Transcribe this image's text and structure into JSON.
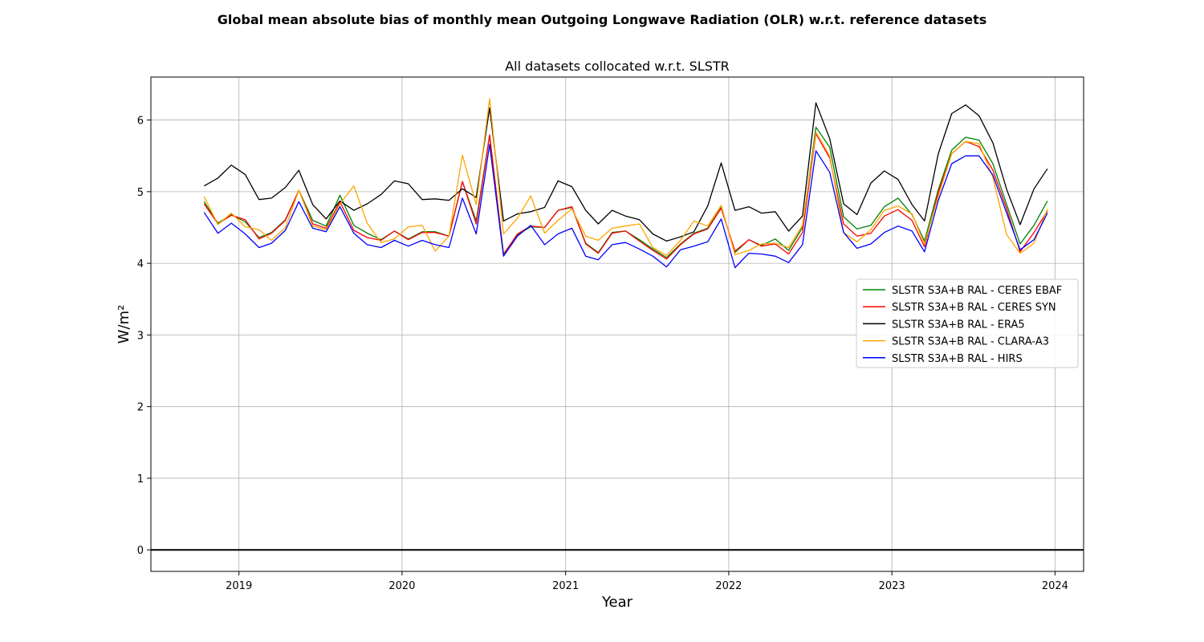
{
  "chart_data": {
    "type": "line",
    "suptitle": "Global mean absolute bias of monthly mean Outgoing Longwave Radiation (OLR) w.r.t. reference datasets",
    "title": "All datasets collocated w.r.t. SLSTR",
    "xlabel": "Year",
    "ylabel": "W/m²",
    "xlim": [
      "2018-06-18",
      "2024-03-05"
    ],
    "ylim": [
      -0.3,
      6.6
    ],
    "xticks": [
      {
        "date": "2019-01-01",
        "label": "2019"
      },
      {
        "date": "2020-01-01",
        "label": "2020"
      },
      {
        "date": "2021-01-01",
        "label": "2021"
      },
      {
        "date": "2022-01-01",
        "label": "2022"
      },
      {
        "date": "2023-01-01",
        "label": "2023"
      },
      {
        "date": "2024-01-01",
        "label": "2024"
      }
    ],
    "yticks": [
      0,
      1,
      2,
      3,
      4,
      5,
      6
    ],
    "grid": true,
    "legend_position": "center-right",
    "reference_line": {
      "y": 0,
      "color": "#000000"
    },
    "x": [
      "2018-10",
      "2018-11",
      "2018-12",
      "2019-01",
      "2019-02",
      "2019-03",
      "2019-04",
      "2019-05",
      "2019-06",
      "2019-07",
      "2019-08",
      "2019-09",
      "2019-10",
      "2019-11",
      "2019-12",
      "2020-01",
      "2020-02",
      "2020-03",
      "2020-04",
      "2020-05",
      "2020-06",
      "2020-07",
      "2020-08",
      "2020-09",
      "2020-10",
      "2020-11",
      "2020-12",
      "2021-01",
      "2021-02",
      "2021-03",
      "2021-04",
      "2021-05",
      "2021-06",
      "2021-07",
      "2021-08",
      "2021-09",
      "2021-10",
      "2021-11",
      "2021-12",
      "2022-01",
      "2022-02",
      "2022-03",
      "2022-04",
      "2022-05",
      "2022-06",
      "2022-07",
      "2022-08",
      "2022-09",
      "2022-10",
      "2022-11",
      "2022-12",
      "2023-01",
      "2023-02",
      "2023-03",
      "2023-04",
      "2023-05",
      "2023-06",
      "2023-07",
      "2023-08",
      "2023-09",
      "2023-10",
      "2023-11",
      "2023-12"
    ],
    "series": [
      {
        "name": "SLSTR S3A+B RAL - CERES EBAF",
        "color": "#008000",
        "values": [
          4.86,
          4.56,
          4.68,
          4.58,
          4.36,
          4.43,
          4.61,
          5.02,
          4.6,
          4.52,
          4.95,
          4.53,
          4.42,
          4.33,
          4.45,
          4.34,
          4.44,
          4.44,
          4.38,
          5.14,
          4.59,
          5.79,
          4.13,
          4.4,
          4.51,
          4.5,
          4.74,
          4.78,
          4.28,
          4.15,
          4.43,
          4.45,
          4.33,
          4.2,
          4.08,
          4.27,
          4.42,
          4.49,
          4.78,
          4.15,
          4.33,
          4.25,
          4.34,
          4.18,
          4.5,
          5.9,
          5.62,
          4.65,
          4.48,
          4.53,
          4.79,
          4.91,
          4.68,
          4.31,
          5.03,
          5.58,
          5.76,
          5.72,
          5.39,
          4.82,
          4.27,
          4.53,
          4.87
        ]
      },
      {
        "name": "SLSTR S3A+B RAL - CERES SYN",
        "color": "#ff0000",
        "values": [
          4.83,
          4.55,
          4.67,
          4.61,
          4.34,
          4.42,
          4.6,
          5.02,
          4.55,
          4.49,
          4.86,
          4.46,
          4.36,
          4.32,
          4.45,
          4.33,
          4.43,
          4.43,
          4.38,
          5.14,
          4.55,
          5.79,
          4.12,
          4.41,
          4.52,
          4.5,
          4.74,
          4.79,
          4.27,
          4.14,
          4.42,
          4.45,
          4.31,
          4.18,
          4.06,
          4.26,
          4.41,
          4.48,
          4.77,
          4.17,
          4.33,
          4.24,
          4.27,
          4.13,
          4.43,
          5.81,
          5.47,
          4.55,
          4.38,
          4.42,
          4.66,
          4.75,
          4.6,
          4.23,
          4.99,
          5.53,
          5.7,
          5.63,
          5.3,
          4.76,
          4.16,
          4.43,
          4.73
        ]
      },
      {
        "name": "SLSTR S3A+B RAL - ERA5",
        "color": "#000000",
        "values": [
          5.08,
          5.19,
          5.37,
          5.24,
          4.89,
          4.91,
          5.06,
          5.3,
          4.82,
          4.62,
          4.87,
          4.74,
          4.83,
          4.96,
          5.15,
          5.11,
          4.89,
          4.9,
          4.88,
          5.04,
          4.92,
          6.17,
          4.59,
          4.69,
          4.72,
          4.78,
          5.15,
          5.07,
          4.74,
          4.55,
          4.74,
          4.66,
          4.61,
          4.41,
          4.31,
          4.37,
          4.44,
          4.8,
          5.4,
          4.74,
          4.79,
          4.7,
          4.72,
          4.45,
          4.66,
          6.24,
          5.74,
          4.83,
          4.68,
          5.12,
          5.29,
          5.17,
          4.82,
          4.59,
          5.53,
          6.09,
          6.21,
          6.06,
          5.68,
          5.03,
          4.54,
          5.04,
          5.32
        ]
      },
      {
        "name": "SLSTR S3A+B RAL - CLARA-A3",
        "color": "#ffa500",
        "values": [
          4.93,
          4.54,
          4.7,
          4.51,
          4.47,
          4.32,
          4.5,
          5.02,
          4.52,
          4.47,
          4.83,
          5.08,
          4.56,
          4.29,
          4.34,
          4.51,
          4.53,
          4.17,
          4.38,
          5.51,
          4.82,
          6.3,
          4.41,
          4.63,
          4.94,
          4.42,
          4.6,
          4.76,
          4.38,
          4.32,
          4.49,
          4.52,
          4.55,
          4.22,
          4.11,
          4.32,
          4.59,
          4.52,
          4.81,
          4.12,
          4.18,
          4.27,
          4.28,
          4.22,
          4.53,
          5.83,
          5.5,
          4.43,
          4.3,
          4.47,
          4.74,
          4.8,
          4.69,
          4.27,
          4.94,
          5.53,
          5.7,
          5.67,
          5.2,
          4.4,
          4.14,
          4.28,
          4.76
        ]
      },
      {
        "name": "SLSTR S3A+B RAL - HIRS",
        "color": "#0000ff",
        "values": [
          4.71,
          4.42,
          4.56,
          4.41,
          4.22,
          4.28,
          4.46,
          4.86,
          4.49,
          4.44,
          4.79,
          4.42,
          4.26,
          4.22,
          4.32,
          4.24,
          4.32,
          4.26,
          4.22,
          4.91,
          4.41,
          5.66,
          4.1,
          4.38,
          4.53,
          4.26,
          4.41,
          4.49,
          4.1,
          4.05,
          4.26,
          4.29,
          4.2,
          4.1,
          3.95,
          4.19,
          4.24,
          4.3,
          4.62,
          3.94,
          4.14,
          4.13,
          4.1,
          4.01,
          4.26,
          5.57,
          5.27,
          4.43,
          4.21,
          4.27,
          4.43,
          4.52,
          4.45,
          4.16,
          4.88,
          5.39,
          5.5,
          5.5,
          5.23,
          4.7,
          4.19,
          4.33,
          4.7
        ]
      }
    ]
  }
}
